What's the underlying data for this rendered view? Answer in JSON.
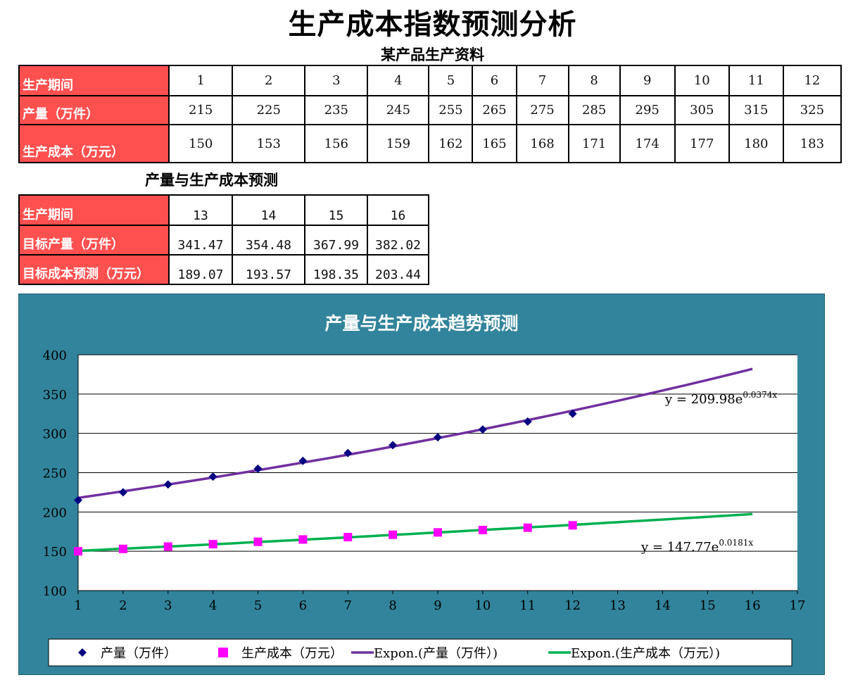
{
  "title": "生产成本指数预测分析",
  "table1": {
    "caption": "某产品生产资料",
    "rows": [
      {
        "label": "生产期间",
        "values": [
          "1",
          "2",
          "3",
          "4",
          "5",
          "6",
          "7",
          "8",
          "9",
          "10",
          "11",
          "12"
        ]
      },
      {
        "label": "产量（万件）",
        "values": [
          "215",
          "225",
          "235",
          "245",
          "255",
          "265",
          "275",
          "285",
          "295",
          "305",
          "315",
          "325"
        ]
      },
      {
        "label": "生产成本（万元）",
        "values": [
          "150",
          "153",
          "156",
          "159",
          "162",
          "165",
          "168",
          "171",
          "174",
          "177",
          "180",
          "183"
        ]
      }
    ]
  },
  "table2": {
    "caption": "产量与生产成本预测",
    "rows": [
      {
        "label": "生产期间",
        "values": [
          "13",
          "14",
          "15",
          "16"
        ]
      },
      {
        "label": "目标产量（万件）",
        "values": [
          "341.47",
          "354.48",
          "367.99",
          "382.02"
        ]
      },
      {
        "label": "目标成本预测（万元）",
        "values": [
          "189.07",
          "193.57",
          "198.35",
          "203.44"
        ]
      }
    ]
  },
  "chart_data": {
    "type": "scatter",
    "title": "产量与生产成本趋势预测",
    "xlabel": "",
    "ylabel": "",
    "xlim": [
      1,
      17
    ],
    "ylim": [
      100,
      400
    ],
    "x_ticks": [
      1,
      2,
      3,
      4,
      5,
      6,
      7,
      8,
      9,
      10,
      11,
      12,
      13,
      14,
      15,
      16,
      17
    ],
    "y_ticks": [
      100,
      150,
      200,
      250,
      300,
      350,
      400
    ],
    "grid": "horizontal",
    "background": "#31849b",
    "series": [
      {
        "name": "产量（万件）",
        "marker": "diamond",
        "color": "#000080",
        "x": [
          1,
          2,
          3,
          4,
          5,
          6,
          7,
          8,
          9,
          10,
          11,
          12
        ],
        "y": [
          215,
          225,
          235,
          245,
          255,
          265,
          275,
          285,
          295,
          305,
          315,
          325
        ]
      },
      {
        "name": "生产成本（万元）",
        "marker": "square",
        "color": "#ff00ff",
        "x": [
          1,
          2,
          3,
          4,
          5,
          6,
          7,
          8,
          9,
          10,
          11,
          12
        ],
        "y": [
          150,
          153,
          156,
          159,
          162,
          165,
          168,
          171,
          174,
          177,
          180,
          183
        ]
      }
    ],
    "trendlines": [
      {
        "name": "Expon.(产量（万件）)",
        "color": "#7030a0",
        "a": 209.98,
        "b": 0.0374,
        "x_range": [
          1,
          16
        ],
        "label_prefix": "y = 209.98e",
        "label_exp": "0.0374x"
      },
      {
        "name": "Expon.(生产成本（万元）)",
        "color": "#00b050",
        "a": 147.77,
        "b": 0.0181,
        "x_range": [
          1,
          16
        ],
        "label_prefix": "y = 147.77e",
        "label_exp": "0.0181x"
      }
    ],
    "legend": {
      "position": "bottom",
      "items": [
        {
          "label": "产量（万件）",
          "kind": "diamond",
          "color": "#000080"
        },
        {
          "label": "生产成本（万元）",
          "kind": "square",
          "color": "#ff00ff"
        },
        {
          "label": "Expon.(产量（万件）)",
          "kind": "line",
          "color": "#7030a0"
        },
        {
          "label": "Expon.(生产成本（万元）)",
          "kind": "line",
          "color": "#00b050"
        }
      ]
    }
  }
}
